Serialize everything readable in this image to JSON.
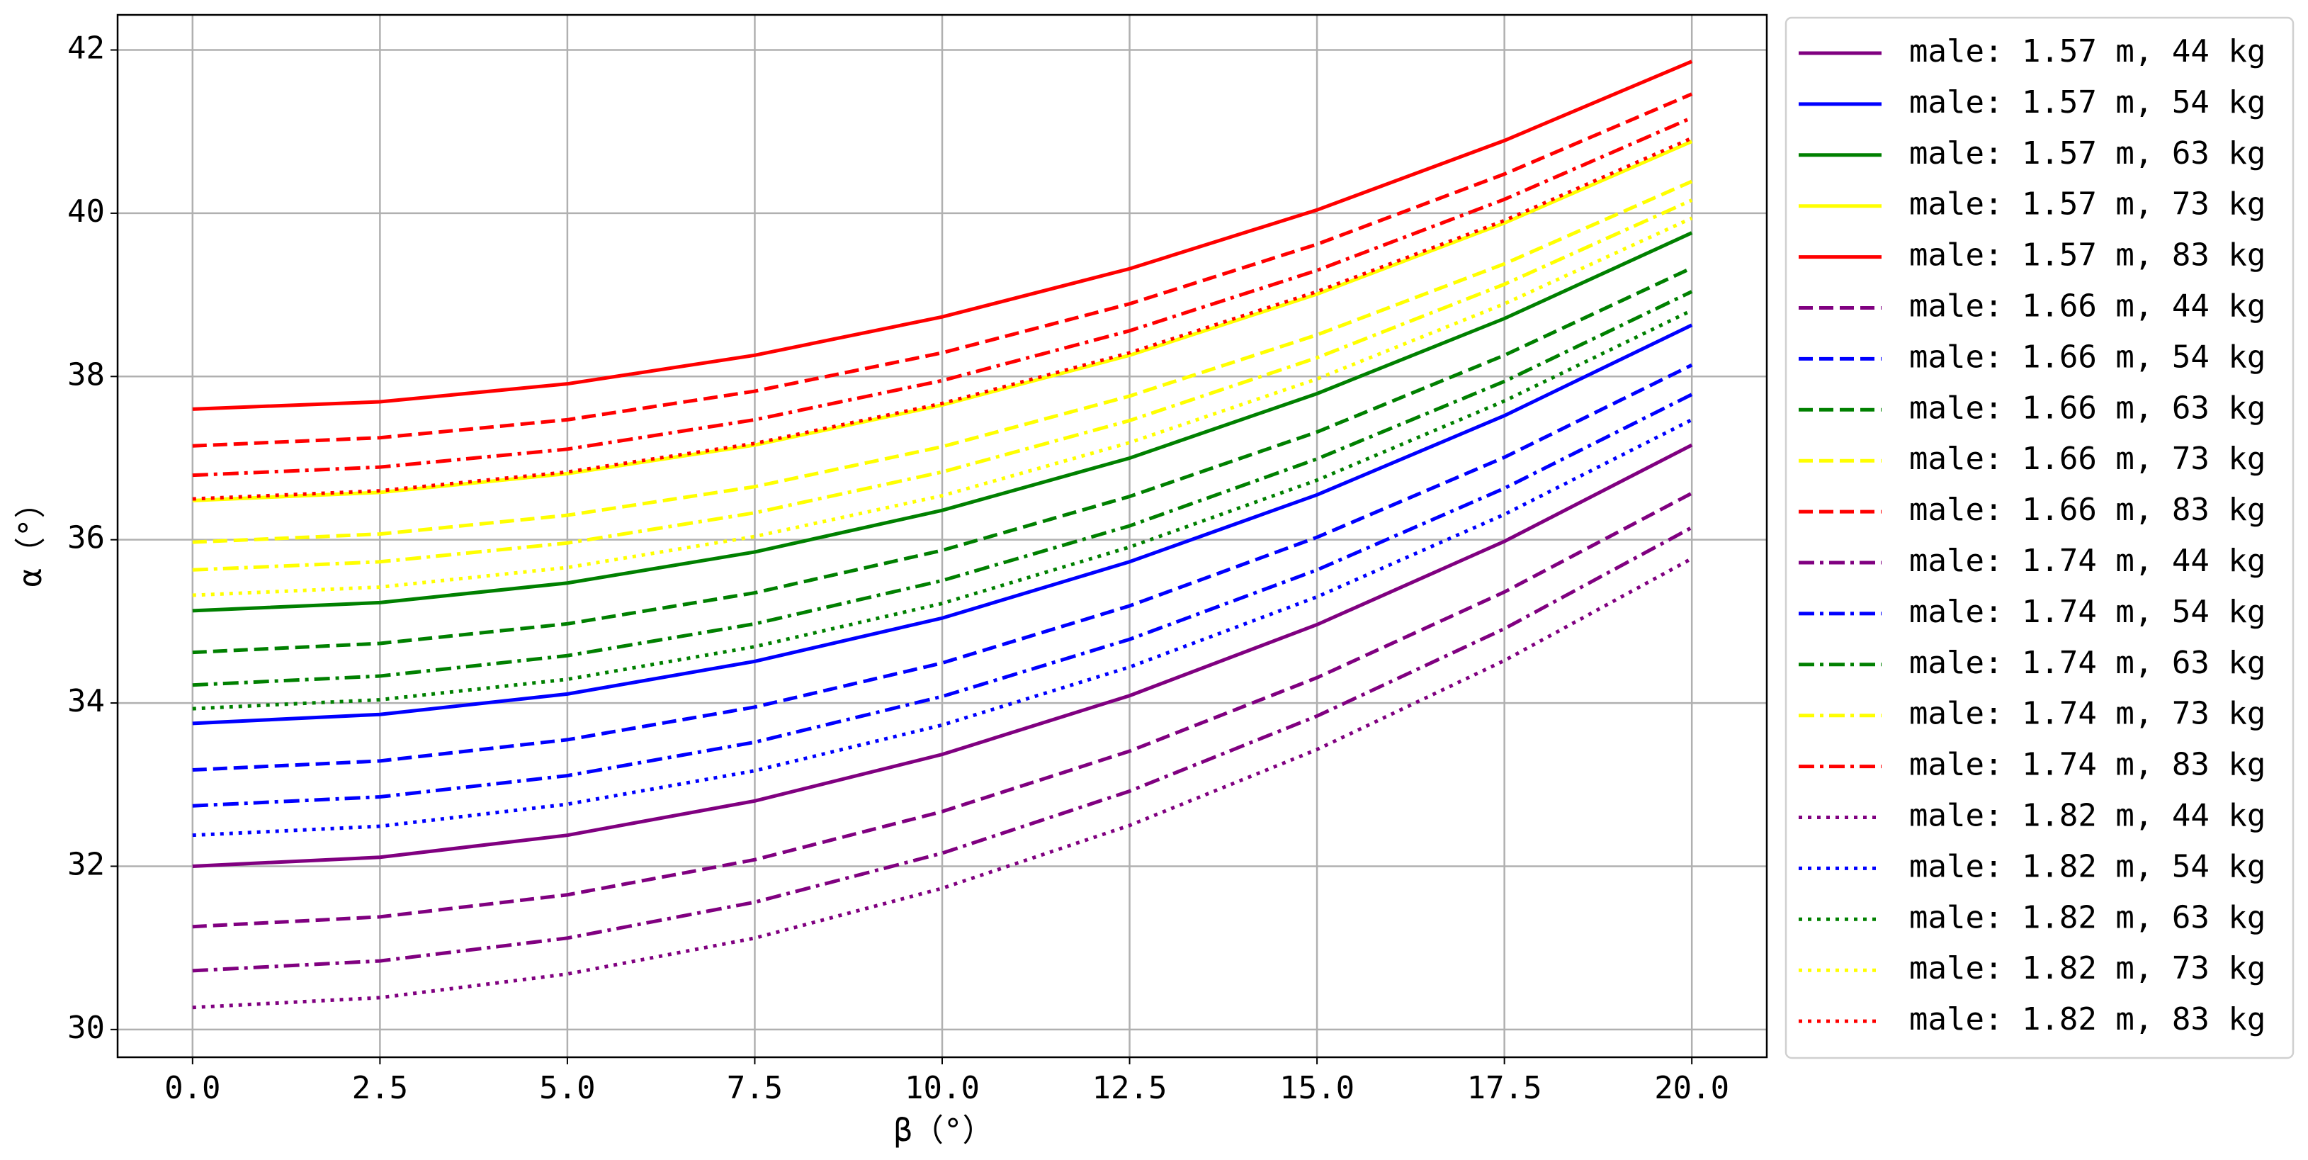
{
  "chart_data": {
    "type": "line",
    "x_label": "β（°）",
    "y_label": "α（°）",
    "x": [
      0,
      2.5,
      5,
      7.5,
      10,
      12.5,
      15,
      17.5,
      20
    ],
    "xlim": [
      -1,
      21
    ],
    "xticks": [
      {
        "value": 0,
        "label": "0.0"
      },
      2.5,
      {
        "value": 5,
        "label": "5.0"
      },
      7.5,
      {
        "value": 10,
        "label": "10.0"
      },
      12.5,
      {
        "value": 15,
        "label": "15.0"
      },
      17.5,
      {
        "value": 20,
        "label": "20.0"
      }
    ],
    "ylim": [
      29.66,
      42.43
    ],
    "yticks": [
      30,
      32,
      34,
      36,
      38,
      40,
      42
    ],
    "grid": true,
    "legend": "right",
    "series": [
      {
        "name": "male: 1.57 m, 44 kg",
        "color": "#800080",
        "dash": "solid",
        "values": [
          32.0,
          32.11,
          32.38,
          32.8,
          33.37,
          34.09,
          34.96,
          35.98,
          37.16
        ]
      },
      {
        "name": "male: 1.57 m, 54 kg",
        "color": "#0000ff",
        "dash": "solid",
        "values": [
          33.75,
          33.86,
          34.11,
          34.51,
          35.04,
          35.73,
          36.55,
          37.52,
          38.63
        ]
      },
      {
        "name": "male: 1.57 m, 63 kg",
        "color": "#008000",
        "dash": "solid",
        "values": [
          35.13,
          35.23,
          35.47,
          35.85,
          36.36,
          37.0,
          37.79,
          38.71,
          39.76
        ]
      },
      {
        "name": "male: 1.57 m, 73 kg",
        "color": "#ffff00",
        "dash": "solid",
        "values": [
          36.48,
          36.58,
          36.81,
          37.16,
          37.65,
          38.26,
          39.01,
          39.88,
          40.88
        ]
      },
      {
        "name": "male: 1.57 m, 83 kg",
        "color": "#ff0000",
        "dash": "solid",
        "values": [
          37.6,
          37.69,
          37.91,
          38.26,
          38.73,
          39.32,
          40.04,
          40.89,
          41.86
        ]
      },
      {
        "name": "male: 1.66 m, 44 kg",
        "color": "#800080",
        "dash": "dashed",
        "values": [
          31.26,
          31.38,
          31.65,
          32.08,
          32.67,
          33.41,
          34.31,
          35.36,
          36.57
        ]
      },
      {
        "name": "male: 1.66 m, 54 kg",
        "color": "#0000ff",
        "dash": "dashed",
        "values": [
          33.18,
          33.29,
          33.55,
          33.95,
          34.49,
          35.19,
          36.03,
          37.01,
          38.14
        ]
      },
      {
        "name": "male: 1.66 m, 63 kg",
        "color": "#008000",
        "dash": "dashed",
        "values": [
          34.62,
          34.73,
          34.97,
          35.35,
          35.87,
          36.53,
          37.32,
          38.26,
          39.33
        ]
      },
      {
        "name": "male: 1.66 m, 73 kg",
        "color": "#ffff00",
        "dash": "dashed",
        "values": [
          35.97,
          36.07,
          36.3,
          36.65,
          37.14,
          37.76,
          38.51,
          39.38,
          40.39
        ]
      },
      {
        "name": "male: 1.66 m, 83 kg",
        "color": "#ff0000",
        "dash": "dashed",
        "values": [
          37.15,
          37.25,
          37.47,
          37.82,
          38.29,
          38.89,
          39.62,
          40.48,
          41.46
        ]
      },
      {
        "name": "male: 1.74 m, 44 kg",
        "color": "#800080",
        "dash": "dashdot",
        "values": [
          30.72,
          30.84,
          31.12,
          31.56,
          32.16,
          32.92,
          33.84,
          34.91,
          36.15
        ]
      },
      {
        "name": "male: 1.74 m, 54 kg",
        "color": "#0000ff",
        "dash": "dashdot",
        "values": [
          32.74,
          32.85,
          33.11,
          33.52,
          34.08,
          34.78,
          35.63,
          36.63,
          37.78
        ]
      },
      {
        "name": "male: 1.74 m, 63 kg",
        "color": "#008000",
        "dash": "dashdot",
        "values": [
          34.22,
          34.33,
          34.58,
          34.97,
          35.5,
          36.17,
          36.99,
          37.94,
          39.04
        ]
      },
      {
        "name": "male: 1.74 m, 73 kg",
        "color": "#ffff00",
        "dash": "dashdot",
        "values": [
          35.63,
          35.73,
          35.96,
          36.33,
          36.83,
          37.46,
          38.23,
          39.13,
          40.16
        ]
      },
      {
        "name": "male: 1.74 m, 83 kg",
        "color": "#ff0000",
        "dash": "dashdot",
        "values": [
          36.79,
          36.89,
          37.11,
          37.47,
          37.95,
          38.56,
          39.3,
          40.17,
          41.17
        ]
      },
      {
        "name": "male: 1.82 m, 44 kg",
        "color": "#800080",
        "dash": "dotted",
        "values": [
          30.27,
          30.39,
          30.68,
          31.12,
          31.73,
          32.5,
          33.43,
          34.52,
          35.77
        ]
      },
      {
        "name": "male: 1.82 m, 54 kg",
        "color": "#0000ff",
        "dash": "dotted",
        "values": [
          32.38,
          32.49,
          32.76,
          33.17,
          33.73,
          34.44,
          35.3,
          36.31,
          37.47
        ]
      },
      {
        "name": "male: 1.82 m, 63 kg",
        "color": "#008000",
        "dash": "dotted",
        "values": [
          33.93,
          34.04,
          34.29,
          34.69,
          35.22,
          35.91,
          36.73,
          37.7,
          38.81
        ]
      },
      {
        "name": "male: 1.82 m, 73 kg",
        "color": "#ffff00",
        "dash": "dotted",
        "values": [
          35.32,
          35.42,
          35.66,
          36.04,
          36.54,
          37.19,
          37.97,
          38.89,
          39.94
        ]
      },
      {
        "name": "male: 1.82 m, 83 kg",
        "color": "#ff0000",
        "dash": "dotted",
        "values": [
          36.5,
          36.6,
          36.83,
          37.18,
          37.67,
          38.29,
          39.04,
          39.91,
          40.92
        ]
      }
    ]
  }
}
